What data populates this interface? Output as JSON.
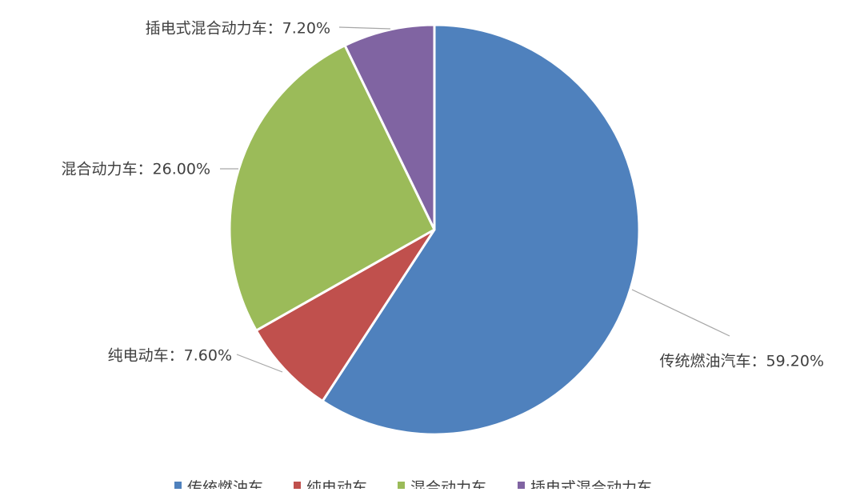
{
  "chart_data": {
    "type": "pie",
    "title": "",
    "categories": [
      "传统燃油汽车",
      "纯电动车",
      "混合动力车",
      "插电式混合动力车"
    ],
    "values": [
      59.2,
      7.6,
      26.0,
      7.2
    ],
    "unit": "%",
    "data_labels": [
      "传统燃油汽车：59.20%",
      "纯电动车：7.60%",
      "混合动力车：26.00%",
      "插电式混合动力车：7.20%"
    ],
    "colors": [
      "#4f81bd",
      "#c0504d",
      "#9bbb59",
      "#8064a2"
    ],
    "start_angle_deg": 0,
    "direction": "clockwise",
    "legend": {
      "position": "bottom",
      "entries": [
        "传统燃油车",
        "纯电动车",
        "混合动力车",
        "插电式混合动力车"
      ]
    }
  }
}
